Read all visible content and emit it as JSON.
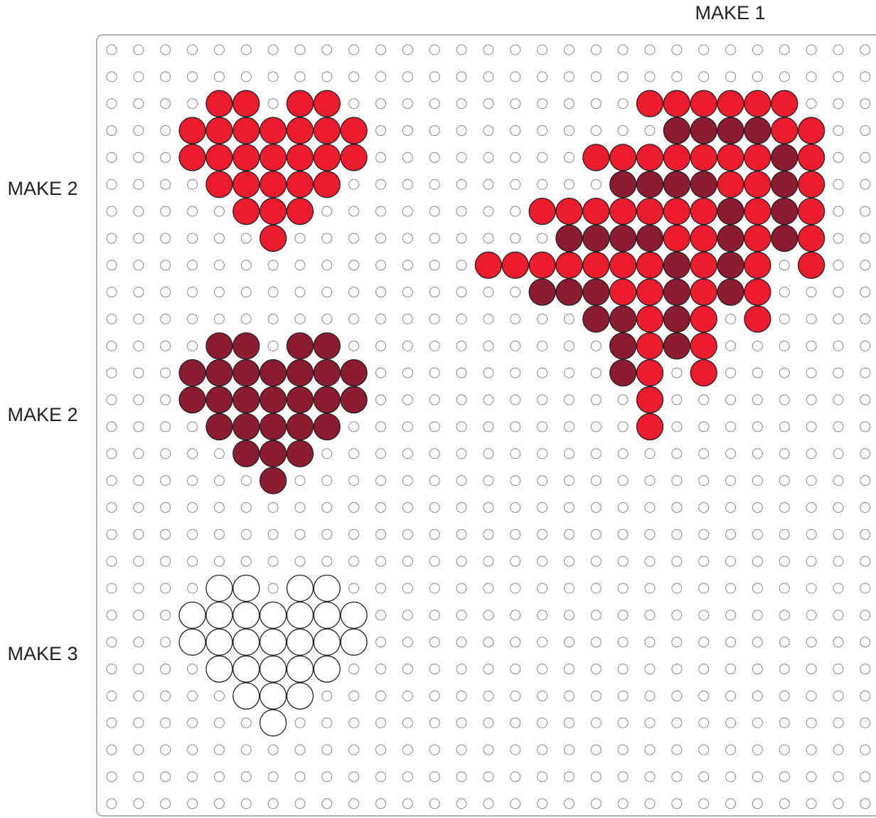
{
  "header": {
    "label": "MAKE 1"
  },
  "side_labels": [
    "MAKE 2",
    "MAKE 2",
    "MAKE 3"
  ]
}
